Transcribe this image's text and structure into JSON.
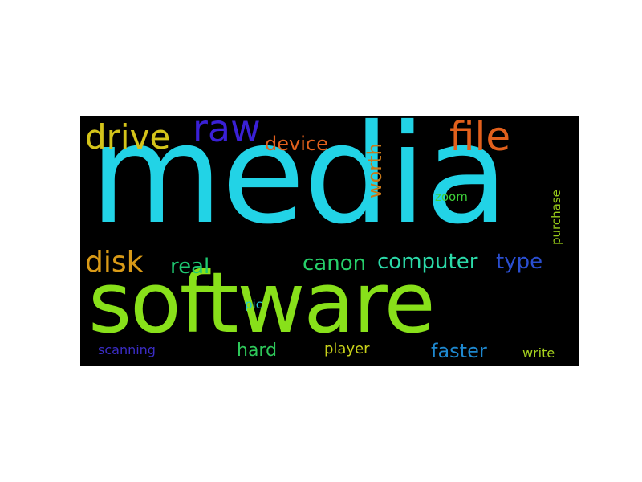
{
  "wordcloud": {
    "background": "#000000",
    "words": [
      {
        "text": "media",
        "color": "#22d3e6"
      },
      {
        "text": "software",
        "color": "#88e01a"
      },
      {
        "text": "drive",
        "color": "#d4c41a"
      },
      {
        "text": "raw",
        "color": "#3a20d6"
      },
      {
        "text": "file",
        "color": "#e2601c"
      },
      {
        "text": "device",
        "color": "#e2601c"
      },
      {
        "text": "worth",
        "color": "#c8781a"
      },
      {
        "text": "zoom",
        "color": "#3ed23a"
      },
      {
        "text": "purchase",
        "color": "#9acd1a"
      },
      {
        "text": "disk",
        "color": "#d99a17"
      },
      {
        "text": "real",
        "color": "#1ec870"
      },
      {
        "text": "canon",
        "color": "#27d06b"
      },
      {
        "text": "computer",
        "color": "#2bd9a8"
      },
      {
        "text": "type",
        "color": "#2a4ed0"
      },
      {
        "text": "pic",
        "color": "#22c6d6"
      },
      {
        "text": "scanning",
        "color": "#3a2cc4"
      },
      {
        "text": "hard",
        "color": "#2ec85a"
      },
      {
        "text": "player",
        "color": "#c9d21a"
      },
      {
        "text": "faster",
        "color": "#1e88cf"
      },
      {
        "text": "write",
        "color": "#a6d21e"
      }
    ]
  }
}
